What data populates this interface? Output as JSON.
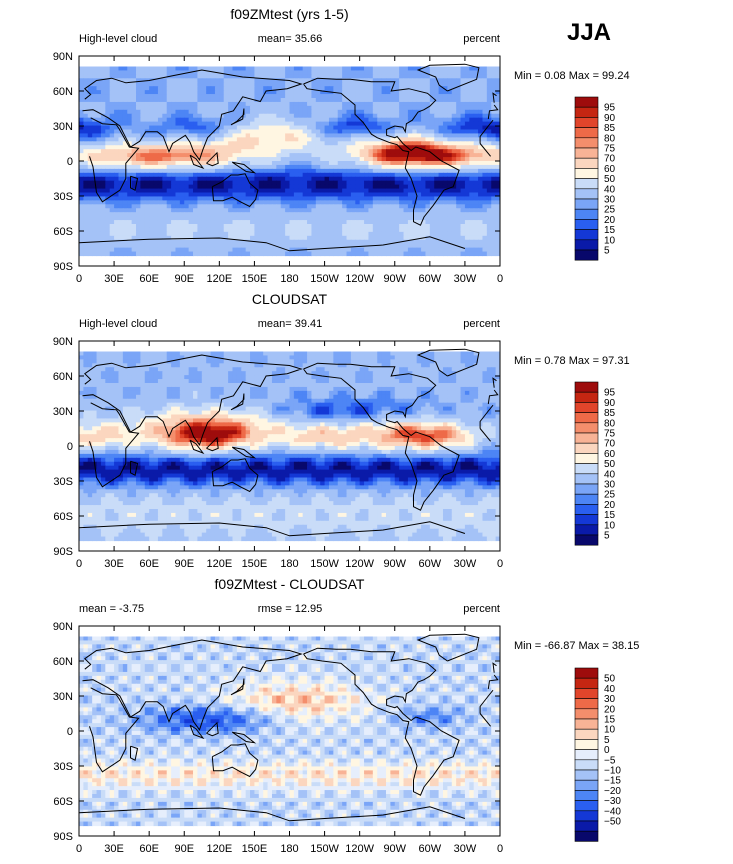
{
  "season": "JJA",
  "colors": {
    "abs_scale": [
      "#08086b",
      "#0a1aa8",
      "#1438d6",
      "#2a5ff0",
      "#4d85f5",
      "#7aa5f7",
      "#a4c2f7",
      "#c9dcf8",
      "#fff6e2",
      "#fbd6bf",
      "#f8b396",
      "#f48e6c",
      "#ee6a48",
      "#e1452b",
      "#c52612",
      "#9e0c0c"
    ],
    "diff_scale": [
      "#08086b",
      "#0a1aa8",
      "#1438d6",
      "#2a5ff0",
      "#4d85f5",
      "#7aa5f7",
      "#a4c2f7",
      "#c9dcf8",
      "#e6eefc",
      "#fff6e2",
      "#fbd6bf",
      "#f8b396",
      "#f48e6c",
      "#ee6a48",
      "#e1452b",
      "#c52612",
      "#9e0c0c"
    ],
    "coast": "#000000"
  },
  "chart_data": [
    {
      "type": "heatmap",
      "title": "f09ZMtest (yrs 1-5)",
      "left_label": "High-level cloud",
      "center_label": "mean=  35.66",
      "right_label": "percent",
      "stats": "Min =    0.08 Max =   99.24",
      "field": "model",
      "units": "percent",
      "mean": 35.66,
      "min": 0.08,
      "max": 99.24,
      "colorbar_levels": [
        5,
        10,
        15,
        20,
        25,
        30,
        40,
        50,
        60,
        70,
        75,
        80,
        85,
        90,
        95
      ],
      "colorbar_labels": [
        "95",
        "90",
        "85",
        "80",
        "75",
        "70",
        "60",
        "50",
        "40",
        "30",
        "25",
        "20",
        "15",
        "10",
        "5"
      ],
      "xlabels": [
        "0",
        "30E",
        "60E",
        "90E",
        "120E",
        "150E",
        "180",
        "150W",
        "120W",
        "90W",
        "60W",
        "30W",
        "0"
      ],
      "ylabels": [
        "90N",
        "60N",
        "30N",
        "0",
        "30S",
        "60S",
        "90S"
      ],
      "xlim": [
        0,
        360
      ],
      "ylim": [
        -90,
        90
      ]
    },
    {
      "type": "heatmap",
      "title": "CLOUDSAT",
      "left_label": "High-level cloud",
      "center_label": "mean=  39.41",
      "right_label": "percent",
      "stats": "Min =    0.78 Max =   97.31",
      "field": "obs",
      "units": "percent",
      "mean": 39.41,
      "min": 0.78,
      "max": 97.31,
      "colorbar_levels": [
        5,
        10,
        15,
        20,
        25,
        30,
        40,
        50,
        60,
        70,
        75,
        80,
        85,
        90,
        95
      ],
      "colorbar_labels": [
        "95",
        "90",
        "85",
        "80",
        "75",
        "70",
        "60",
        "50",
        "40",
        "30",
        "25",
        "20",
        "15",
        "10",
        "5"
      ],
      "xlabels": [
        "0",
        "30E",
        "60E",
        "90E",
        "120E",
        "150E",
        "180",
        "150W",
        "120W",
        "90W",
        "60W",
        "30W",
        "0"
      ],
      "ylabels": [
        "90N",
        "60N",
        "30N",
        "0",
        "30S",
        "60S",
        "90S"
      ],
      "xlim": [
        0,
        360
      ],
      "ylim": [
        -90,
        90
      ]
    },
    {
      "type": "heatmap",
      "title": "f09ZMtest - CLOUDSAT",
      "left_label": "mean =   -3.75",
      "center_label": "rmse =   12.95",
      "right_label": "percent",
      "stats": "Min = -66.87 Max =   38.15",
      "field": "diff",
      "units": "percent",
      "mean": -3.75,
      "rmse": 12.95,
      "min": -66.87,
      "max": 38.15,
      "colorbar_levels": [
        -50,
        -40,
        -30,
        -20,
        -15,
        -10,
        -5,
        0,
        5,
        10,
        15,
        20,
        30,
        40,
        50
      ],
      "colorbar_labels": [
        "50",
        "40",
        "30",
        "20",
        "15",
        "10",
        "5",
        "0",
        "−5",
        "−10",
        "−15",
        "−20",
        "−30",
        "−40",
        "−50"
      ],
      "xlabels": [
        "0",
        "30E",
        "60E",
        "90E",
        "120E",
        "150E",
        "180",
        "150W",
        "120W",
        "90W",
        "60W",
        "30W",
        "0"
      ],
      "ylabels": [
        "90N",
        "60N",
        "30N",
        "0",
        "30S",
        "60S",
        "90S"
      ],
      "xlim": [
        0,
        360
      ],
      "ylim": [
        -90,
        90
      ]
    }
  ]
}
